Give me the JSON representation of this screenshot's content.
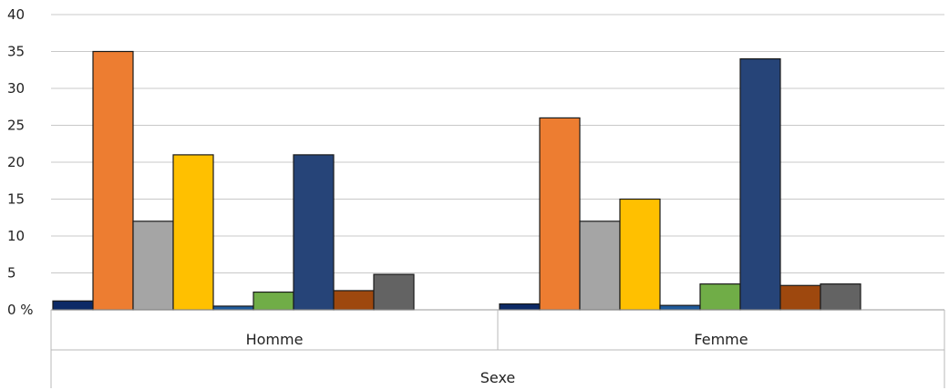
{
  "chart_data": {
    "type": "bar",
    "categories": [
      "Homme",
      "Femme"
    ],
    "group_label": "Sexe",
    "y_ticks": [
      "0 %",
      "5",
      "10",
      "15",
      "20",
      "25",
      "30",
      "35",
      "40"
    ],
    "ylim": [
      0,
      40
    ],
    "grid": true,
    "legend": "none",
    "series": [
      {
        "color": "#0d2a66",
        "values": [
          1.2,
          0.8
        ]
      },
      {
        "color": "#ed7d31",
        "values": [
          35,
          26
        ]
      },
      {
        "color": "#a5a5a5",
        "values": [
          12,
          12
        ]
      },
      {
        "color": "#ffc000",
        "values": [
          21,
          15
        ]
      },
      {
        "color": "#1f5a9a",
        "values": [
          0.5,
          0.6
        ]
      },
      {
        "color": "#70ad47",
        "values": [
          2.4,
          3.5
        ]
      },
      {
        "color": "#264478",
        "values": [
          21,
          34
        ]
      },
      {
        "color": "#9e480e",
        "values": [
          2.6,
          3.3
        ]
      },
      {
        "color": "#636363",
        "values": [
          4.8,
          3.5
        ]
      }
    ]
  }
}
